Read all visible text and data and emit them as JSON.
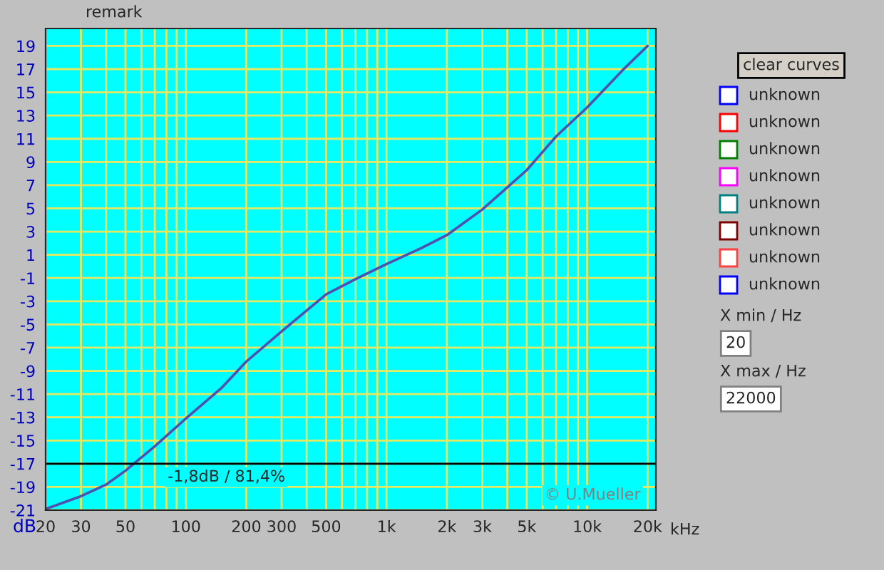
{
  "chart_data": {
    "type": "line",
    "ylabel": "dB",
    "log": "x",
    "x": [
      20,
      30,
      40,
      50,
      70,
      100,
      150,
      200,
      300,
      500,
      700,
      1000,
      1500,
      2000,
      3000,
      5000,
      7000,
      10000,
      15000,
      20000
    ],
    "series": [
      {
        "color": "#5050b0",
        "values": [
          -20.9,
          -19.8,
          -18.8,
          -17.6,
          -15.5,
          -13.1,
          -10.5,
          -8.2,
          -5.6,
          -2.4,
          -1.1,
          0.2,
          1.6,
          2.7,
          4.9,
          8.3,
          11.2,
          13.7,
          16.9,
          19
        ]
      }
    ],
    "xlim": [
      20,
      22000
    ],
    "ylim": [
      -21,
      20.5
    ],
    "xticks": [
      20,
      30,
      50,
      100,
      200,
      300,
      500,
      {
        "value": 1000,
        "label": "1k"
      },
      {
        "value": 2000,
        "label": "2k"
      },
      {
        "value": 3000,
        "label": "3k"
      },
      {
        "value": 5000,
        "label": "5k"
      },
      {
        "value": 10000,
        "label": "10k"
      },
      {
        "value": 20000,
        "label": "20k"
      }
    ],
    "xlabel": "kHz",
    "yticks": [
      -21,
      -19,
      -17,
      -15,
      -13,
      -11,
      -9,
      -7,
      -5,
      -3,
      -1,
      1,
      3,
      5,
      7,
      9,
      11,
      13,
      15,
      17,
      19
    ],
    "ref_lines": [
      {
        "axis": "y",
        "value": -17,
        "label": "-1,8dB / 81,4%",
        "color": "#000000"
      }
    ],
    "grid": true,
    "annotations": [
      "remark",
      "clear curves",
      "unknown",
      "unknown",
      "unknown",
      "unknown",
      "unknown",
      "unknown",
      "unknown",
      "unknown",
      "X min / Hz",
      "20",
      "X max / Hz",
      "22000",
      "© U.Mueller"
    ]
  }
}
